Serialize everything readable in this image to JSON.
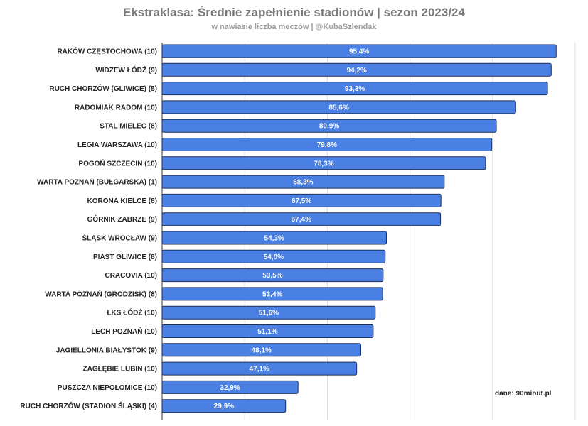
{
  "chart_data": {
    "type": "bar",
    "orientation": "horizontal",
    "title": "Ekstraklasa: Średnie zapełnienie stadionów | sezon 2023/24",
    "subtitle": "w nawiasie liczba meczów | @KubaSzlendak",
    "source": "dane: 90minut.pl",
    "xlim": [
      0,
      100
    ],
    "xticks": [
      0,
      20,
      40,
      60,
      80,
      100
    ],
    "grid": true,
    "bar_color": "#4a80e4",
    "bar_stroke": "#1c2f5a",
    "categories": [
      "RAKÓW CZĘSTOCHOWA (10)",
      "WIDZEW ŁÓDŹ (9)",
      "RUCH CHORZÓW (GLIWICE) (5)",
      "RADOMIAK RADOM (10)",
      "STAL MIELEC (8)",
      "LEGIA WARSZAWA (10)",
      "POGOŃ SZCZECIN (10)",
      "WARTA POZNAŃ (BUŁGARSKA) (1)",
      "KORONA KIELCE (8)",
      "GÓRNIK ZABRZE (9)",
      "ŚLĄSK WROCŁAW (9)",
      "PIAST GLIWICE (8)",
      "CRACOVIA (10)",
      "WARTA POZNAŃ (GRODZISK) (8)",
      "ŁKS ŁÓDŹ (10)",
      "LECH POZNAŃ (10)",
      "JAGIELLONIA BIAŁYSTOK (9)",
      "ZAGŁĘBIE LUBIN (10)",
      "PUSZCZA NIEPOŁOMICE (10)",
      "RUCH CHORZÓW (STADION ŚLĄSKI) (4)"
    ],
    "values": [
      95.4,
      94.2,
      93.3,
      85.6,
      80.9,
      79.8,
      78.3,
      68.3,
      67.5,
      67.4,
      54.3,
      54.0,
      53.5,
      53.4,
      51.6,
      51.1,
      48.1,
      47.1,
      32.9,
      29.9
    ],
    "value_labels": [
      "95,4%",
      "94,2%",
      "93,3%",
      "85,6%",
      "80,9%",
      "79,8%",
      "78,3%",
      "68,3%",
      "67,5%",
      "67,4%",
      "54,3%",
      "54,0%",
      "53,5%",
      "53,4%",
      "51,6%",
      "51,1%",
      "48,1%",
      "47,1%",
      "32,9%",
      "29,9%"
    ]
  }
}
